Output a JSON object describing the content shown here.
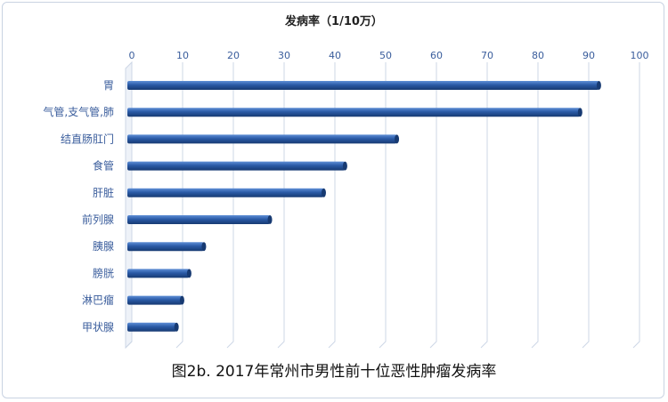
{
  "chart_data": {
    "type": "bar",
    "orientation": "horizontal",
    "axis_title": "发病率（1/10万）",
    "caption": "图2b. 2017年常州市男性前十位恶性肿瘤发病率",
    "xlim": [
      0,
      100
    ],
    "x_ticks": [
      0,
      10,
      20,
      30,
      40,
      50,
      60,
      70,
      80,
      90,
      100
    ],
    "x_axis_position": "top",
    "grid": true,
    "categories": [
      "胃",
      "气管,支气管,肺",
      "结直肠肛门",
      "食管",
      "肝脏",
      "前列腺",
      "胰腺",
      "膀胱",
      "淋巴瘤",
      "甲状腺"
    ],
    "values": [
      92.0,
      88.3,
      52.2,
      42.0,
      37.8,
      27.2,
      14.2,
      11.3,
      9.9,
      8.8
    ],
    "bar_color": "#2a5aa6",
    "bar_highlight": "#5f8fd6",
    "bar_shadow": "#173a72",
    "tick_color": "#3a5d9c",
    "grid_color": "#cdd7e6"
  }
}
